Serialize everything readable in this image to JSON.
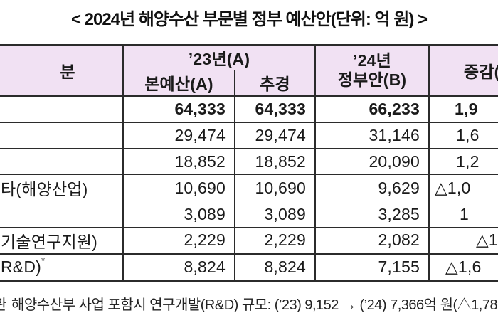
{
  "title": "< 2024년 해양수산 부문별 정부 예산안(단위: 억 원) >",
  "table": {
    "header": {
      "gubun": "분",
      "y23": "’23년(A)",
      "main_budget": "본예산(A)",
      "supplementary": "추경",
      "y24_line1": "’24년",
      "y24_line2": "정부안(B)",
      "change": "증감(A-"
    },
    "rows": [
      {
        "label": "",
        "main_budget": "64,333",
        "supplementary": "64,333",
        "govt_2024": "66,233",
        "change": "1,9"
      },
      {
        "label": "",
        "main_budget": "29,474",
        "supplementary": "29,474",
        "govt_2024": "31,146",
        "change": "1,6"
      },
      {
        "label": "",
        "main_budget": "18,852",
        "supplementary": "18,852",
        "govt_2024": "20,090",
        "change": "1,2"
      },
      {
        "label": "타(해양산업)",
        "main_budget": "10,690",
        "supplementary": "10,690",
        "govt_2024": "9,629",
        "change": "△1,0"
      },
      {
        "label": "",
        "main_budget": "3,089",
        "supplementary": "3,089",
        "govt_2024": "3,285",
        "change": "1"
      },
      {
        "label": "기술연구지원)",
        "main_budget": "2,229",
        "supplementary": "2,229",
        "govt_2024": "2,082",
        "change": "△1"
      },
      {
        "label": "R&D)",
        "label_sup": "*",
        "main_budget": "8,824",
        "supplementary": "8,824",
        "govt_2024": "7,155",
        "change": "△1,6"
      }
    ]
  },
  "footnote": {
    "clipped_char": "관",
    "text": "해양수산부 사업 포함시 연구개발(R&D) 규모: (’23) 9,152 → (’24) 7,366억 원(△1,78"
  },
  "colors": {
    "header_bg": "#F1E1F3",
    "border": "#2B2B2B",
    "text": "#1A1A1A"
  }
}
